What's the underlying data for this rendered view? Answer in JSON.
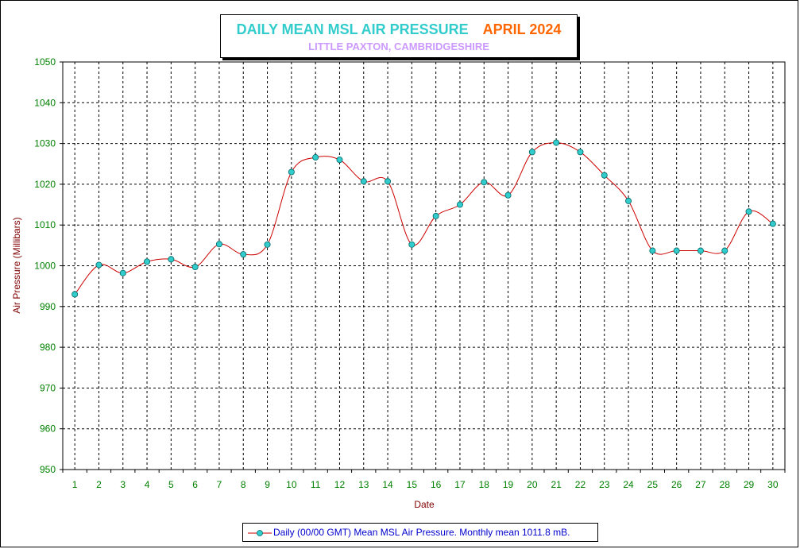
{
  "chart_data": {
    "type": "line",
    "title": "DAILY MEAN MSL AIR PRESSURE",
    "title_month": "APRIL 2024",
    "subtitle": "LITTLE PAXTON, CAMBRIDGESHIRE",
    "xlabel": "Date",
    "ylabel": "Air Pressure (Millibars)",
    "ylim": [
      950,
      1050
    ],
    "yticks": [
      950,
      960,
      970,
      980,
      990,
      1000,
      1010,
      1020,
      1030,
      1040,
      1050
    ],
    "x": [
      1,
      2,
      3,
      4,
      5,
      6,
      7,
      8,
      9,
      10,
      11,
      12,
      13,
      14,
      15,
      16,
      17,
      18,
      19,
      20,
      21,
      22,
      23,
      24,
      25,
      26,
      27,
      28,
      29,
      30
    ],
    "series": [
      {
        "name": "Daily (00/00 GMT) Mean MSL Air Pressure. Monthly mean 1011.8 mB.",
        "values": [
          993.0,
          1000.2,
          998.2,
          1001.0,
          1001.6,
          999.7,
          1005.3,
          1002.8,
          1005.2,
          1023.0,
          1026.6,
          1026.0,
          1020.7,
          1020.7,
          1005.2,
          1012.2,
          1015.0,
          1020.5,
          1017.3,
          1027.9,
          1030.2,
          1027.9,
          1022.2,
          1015.9,
          1003.7,
          1003.7,
          1003.7,
          1003.7,
          1013.3,
          1010.3
        ]
      }
    ],
    "grid": true,
    "legend_position": "bottom",
    "colors": {
      "line": "#cc0000",
      "marker_fill": "#33cccc",
      "axis_text": "#008000",
      "label_text": "#800000"
    }
  }
}
